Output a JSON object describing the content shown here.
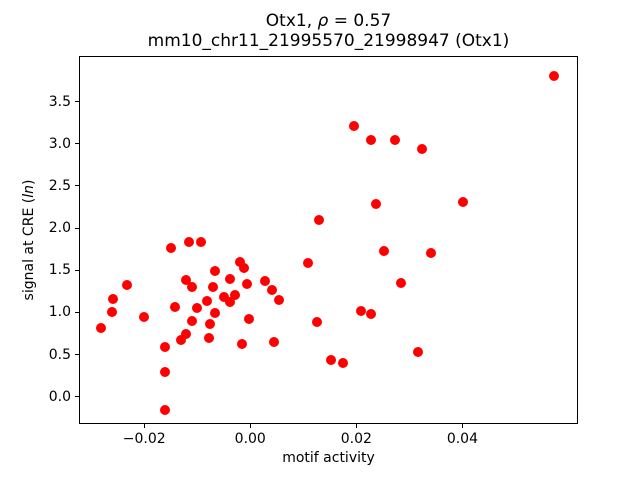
{
  "chart_data": {
    "type": "scatter",
    "title": "Otx1, ρ = 0.57",
    "title_parts": {
      "pre": "Otx1, ",
      "italic": "ρ",
      "post": " = 0.57"
    },
    "subtitle": "mm10_chr11_21995570_21998947 (Otx1)",
    "xlabel": "motif activity",
    "ylabel": "signal at CRE (ln)",
    "ylabel_parts": {
      "pre": "signal at CRE (",
      "italic": "ln",
      "post": ")"
    },
    "marker_color": "#ff0000",
    "axis_color": "#000000",
    "grid": false,
    "legend": "none",
    "xlim": [
      -0.0322,
      0.0617
    ],
    "ylim": [
      -0.318,
      4.036
    ],
    "xticks": [
      -0.02,
      0.0,
      0.02,
      0.04
    ],
    "xtick_labels": [
      "−0.02",
      "0.00",
      "0.02",
      "0.04"
    ],
    "yticks": [
      0.0,
      0.5,
      1.0,
      1.5,
      2.0,
      2.5,
      3.0,
      3.5
    ],
    "ytick_labels": [
      "0.0",
      "0.5",
      "1.0",
      "1.5",
      "2.0",
      "2.5",
      "3.0",
      "3.5"
    ],
    "points": [
      [
        0.0572,
        3.81
      ],
      [
        0.0195,
        3.21
      ],
      [
        0.0227,
        3.05
      ],
      [
        0.0273,
        3.05
      ],
      [
        0.0324,
        2.94
      ],
      [
        0.0402,
        2.31
      ],
      [
        0.0237,
        2.29
      ],
      [
        0.013,
        2.1
      ],
      [
        0.0252,
        1.73
      ],
      [
        0.0341,
        1.7
      ],
      [
        0.0108,
        1.59
      ],
      [
        0.0284,
        1.35
      ],
      [
        0.0208,
        1.02
      ],
      [
        0.0227,
        0.98
      ],
      [
        0.0126,
        0.89
      ],
      [
        0.0316,
        0.53
      ],
      [
        0.0152,
        0.43
      ],
      [
        0.0174,
        0.4
      ],
      [
        0.0027,
        1.37
      ],
      [
        0.0041,
        1.26
      ],
      [
        0.0054,
        1.15
      ],
      [
        0.0045,
        0.65
      ],
      [
        -0.0003,
        0.92
      ],
      [
        -0.0015,
        0.62
      ],
      [
        -0.0019,
        1.6
      ],
      [
        -0.0011,
        1.53
      ],
      [
        -0.0067,
        1.49
      ],
      [
        -0.0038,
        1.4
      ],
      [
        -0.0006,
        1.34
      ],
      [
        -0.007,
        1.3
      ],
      [
        -0.0029,
        1.21
      ],
      [
        -0.0049,
        1.18
      ],
      [
        -0.0038,
        1.12
      ],
      [
        -0.0082,
        1.13
      ],
      [
        -0.0066,
        0.99
      ],
      [
        -0.015,
        1.77
      ],
      [
        -0.0115,
        1.83
      ],
      [
        -0.0093,
        1.83
      ],
      [
        -0.0141,
        1.06
      ],
      [
        -0.0101,
        1.05
      ],
      [
        -0.0122,
        1.39
      ],
      [
        -0.0109,
        1.3
      ],
      [
        -0.0109,
        0.9
      ],
      [
        -0.0075,
        0.86
      ],
      [
        -0.0201,
        0.95
      ],
      [
        -0.0233,
        1.32
      ],
      [
        -0.0258,
        1.16
      ],
      [
        -0.0261,
        1.01
      ],
      [
        -0.0282,
        0.81
      ],
      [
        -0.0161,
        0.59
      ],
      [
        -0.0131,
        0.67
      ],
      [
        -0.0121,
        0.74
      ],
      [
        -0.0078,
        0.7
      ],
      [
        -0.0161,
        0.29
      ],
      [
        -0.0161,
        -0.16
      ]
    ]
  }
}
